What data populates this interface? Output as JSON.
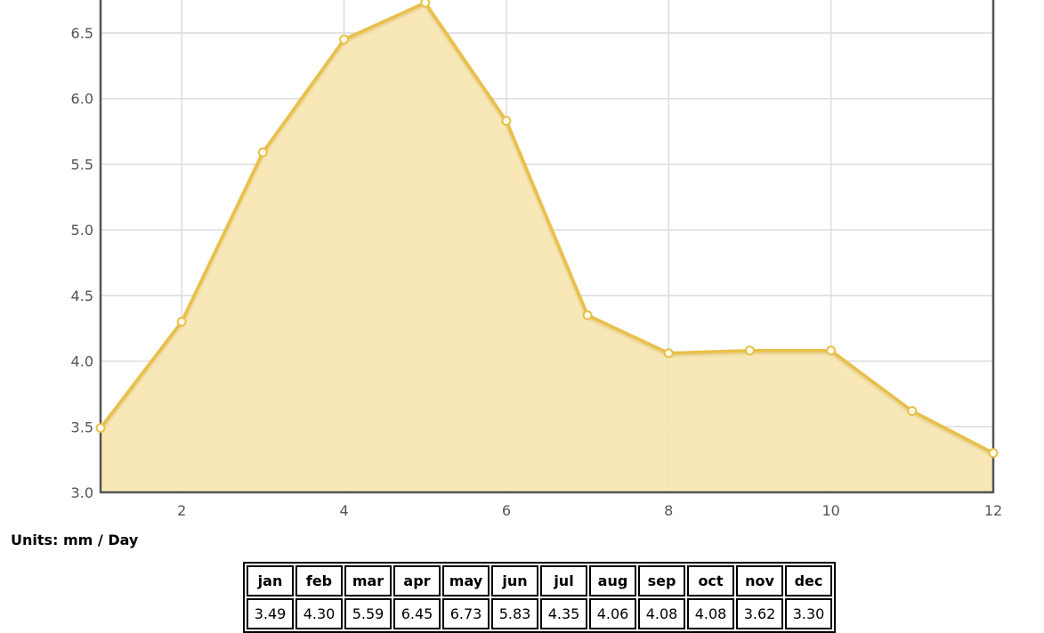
{
  "chart_data": {
    "type": "area",
    "x": [
      1,
      2,
      3,
      4,
      5,
      6,
      7,
      8,
      9,
      10,
      11,
      12
    ],
    "values": [
      3.49,
      4.3,
      5.59,
      6.45,
      6.73,
      5.83,
      4.35,
      4.06,
      4.08,
      4.08,
      3.62,
      3.3
    ],
    "xlim": [
      1,
      12
    ],
    "ylim": [
      3.0,
      6.75
    ],
    "x_ticks": [
      2,
      4,
      6,
      8,
      10,
      12
    ],
    "y_ticks": [
      3.0,
      3.5,
      4.0,
      4.5,
      5.0,
      5.5,
      6.0,
      6.5
    ],
    "y_tick_labels": [
      "3.0",
      "3.5",
      "4.0",
      "4.5",
      "5.0",
      "5.5",
      "6.0",
      "6.5"
    ],
    "grid": true,
    "colors": {
      "fill": "#f7e5b0",
      "line": "#e8c04a",
      "grid": "#dcdcdc",
      "axis": "#545454"
    }
  },
  "units_label": "Units: mm / Day",
  "table": {
    "months": [
      "jan",
      "feb",
      "mar",
      "apr",
      "may",
      "jun",
      "jul",
      "aug",
      "sep",
      "oct",
      "nov",
      "dec"
    ],
    "values": [
      "3.49",
      "4.30",
      "5.59",
      "6.45",
      "6.73",
      "5.83",
      "4.35",
      "4.06",
      "4.08",
      "4.08",
      "3.62",
      "3.30"
    ]
  }
}
